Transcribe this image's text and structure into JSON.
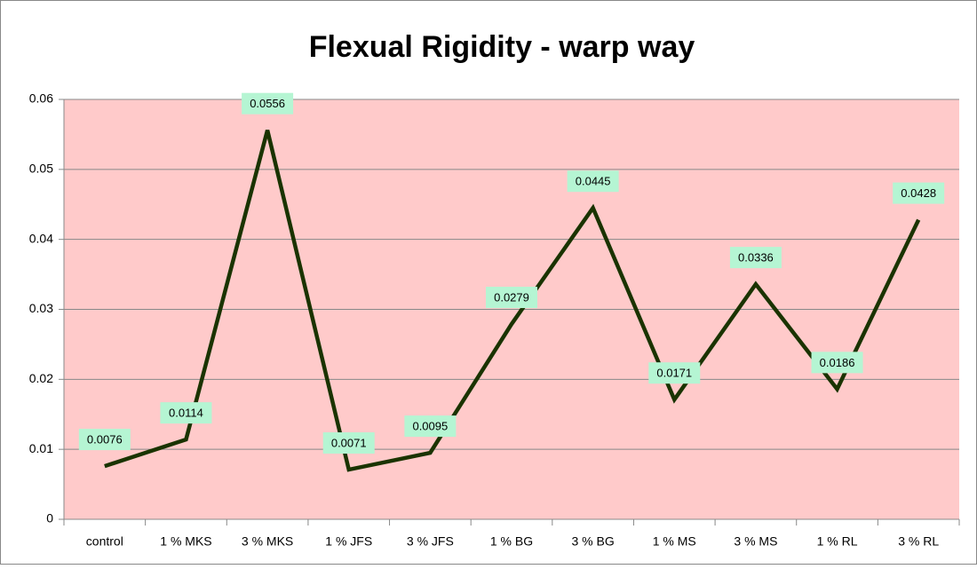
{
  "chart_data": {
    "type": "line",
    "title": "Flexual Rigidity - warp way",
    "categories": [
      "control",
      "1 % MKS",
      "3 % MKS",
      "1 % JFS",
      "3 % JFS",
      "1 % BG",
      "3 % BG",
      "1 % MS",
      "3 % MS",
      "1 % RL",
      "3 % RL"
    ],
    "values": [
      0.0076,
      0.0114,
      0.0556,
      0.0071,
      0.0095,
      0.0279,
      0.0445,
      0.0171,
      0.0336,
      0.0186,
      0.0428
    ],
    "color": "#1a3300",
    "ylim": [
      0,
      0.06
    ],
    "yticks": [
      0,
      0.01,
      0.02,
      0.03,
      0.04,
      0.05,
      0.06
    ],
    "grid": true
  }
}
